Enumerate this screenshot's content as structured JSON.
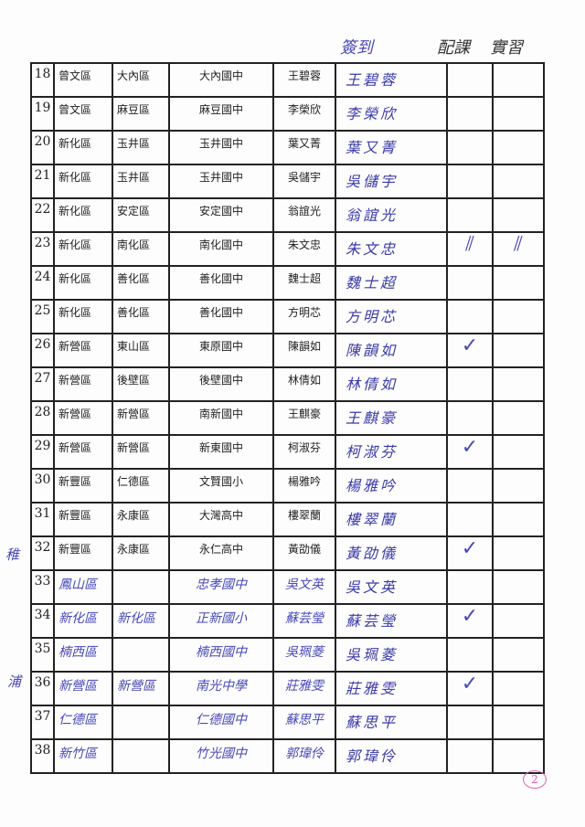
{
  "header": {
    "sign_in": "簽到",
    "col7": "配課",
    "col8": "實習"
  },
  "rows": [
    {
      "no": "18",
      "district": "曾文區",
      "area": "大內區",
      "school": "大內國中",
      "name": "王碧蓉",
      "signature": "王碧蓉",
      "c1": "",
      "c2": ""
    },
    {
      "no": "19",
      "district": "曾文區",
      "area": "麻豆區",
      "school": "麻豆國中",
      "name": "李榮欣",
      "signature": "李榮欣",
      "c1": "",
      "c2": ""
    },
    {
      "no": "20",
      "district": "新化區",
      "area": "玉井區",
      "school": "玉井國中",
      "name": "葉又菁",
      "signature": "葉又菁",
      "c1": "",
      "c2": ""
    },
    {
      "no": "21",
      "district": "新化區",
      "area": "玉井區",
      "school": "玉井國中",
      "name": "吳儲宇",
      "signature": "吳儲宇",
      "c1": "",
      "c2": ""
    },
    {
      "no": "22",
      "district": "新化區",
      "area": "安定區",
      "school": "安定國中",
      "name": "翁誼光",
      "signature": "翁誼光",
      "c1": "",
      "c2": ""
    },
    {
      "no": "23",
      "district": "新化區",
      "area": "南化區",
      "school": "南化國中",
      "name": "朱文忠",
      "signature": "朱文忠",
      "c1": "⫽",
      "c2": "⫽"
    },
    {
      "no": "24",
      "district": "新化區",
      "area": "善化區",
      "school": "善化國中",
      "name": "魏士超",
      "signature": "魏士超",
      "c1": "",
      "c2": ""
    },
    {
      "no": "25",
      "district": "新化區",
      "area": "善化區",
      "school": "善化國中",
      "name": "方明芯",
      "signature": "方明芯",
      "c1": "",
      "c2": ""
    },
    {
      "no": "26",
      "district": "新營區",
      "area": "東山區",
      "school": "東原國中",
      "name": "陳韻如",
      "signature": "陳韻如",
      "c1": "✓",
      "c2": ""
    },
    {
      "no": "27",
      "district": "新營區",
      "area": "後壁區",
      "school": "後壁國中",
      "name": "林倩如",
      "signature": "林倩如",
      "c1": "",
      "c2": ""
    },
    {
      "no": "28",
      "district": "新營區",
      "area": "新營區",
      "school": "南新國中",
      "name": "王麒豪",
      "signature": "王麒豪",
      "c1": "",
      "c2": ""
    },
    {
      "no": "29",
      "district": "新營區",
      "area": "新營區",
      "school": "新東國中",
      "name": "柯淑芬",
      "signature": "柯淑芬",
      "c1": "✓",
      "c2": ""
    },
    {
      "no": "30",
      "district": "新豐區",
      "area": "仁德區",
      "school": "文賢國小",
      "name": "楊雅吟",
      "signature": "楊雅吟",
      "c1": "",
      "c2": ""
    },
    {
      "no": "31",
      "district": "新豐區",
      "area": "永康區",
      "school": "大灣高中",
      "name": "樓翠蘭",
      "signature": "樓翠蘭",
      "c1": "",
      "c2": ""
    },
    {
      "no": "32",
      "district": "新豐區",
      "area": "永康區",
      "school": "永仁高中",
      "name": "黃劭儀",
      "signature": "黃劭儀",
      "c1": "✓",
      "c2": ""
    },
    {
      "no": "33",
      "district": "鳳山區",
      "area": "",
      "school": "忠孝國中",
      "name": "吳文英",
      "signature": "吳文英",
      "c1": "",
      "c2": "",
      "hw": true
    },
    {
      "no": "34",
      "district": "新化區",
      "area": "新化區",
      "school": "正新國小",
      "name": "蘇芸瑩",
      "signature": "蘇芸瑩",
      "c1": "✓",
      "c2": "",
      "hw": true
    },
    {
      "no": "35",
      "district": "楠西區",
      "area": "",
      "school": "楠西國中",
      "name": "吳珮菱",
      "signature": "吳珮菱",
      "c1": "",
      "c2": "",
      "hw": true
    },
    {
      "no": "36",
      "district": "新營區",
      "area": "新營區",
      "school": "南光中學",
      "name": "莊雅雯",
      "signature": "莊雅雯",
      "c1": "✓",
      "c2": "",
      "hw": true
    },
    {
      "no": "37",
      "district": "仁德區",
      "area": "",
      "school": "仁德國中",
      "name": "蘇思平",
      "signature": "蘇思平",
      "c1": "",
      "c2": "",
      "hw": true
    },
    {
      "no": "38",
      "district": "新竹區",
      "area": "",
      "school": "竹光國中",
      "name": "郭瑋伶",
      "signature": "郭瑋伶",
      "c1": "",
      "c2": "",
      "hw": true
    }
  ],
  "margin_notes": [
    "稚",
    "浦"
  ],
  "page_number": "2"
}
